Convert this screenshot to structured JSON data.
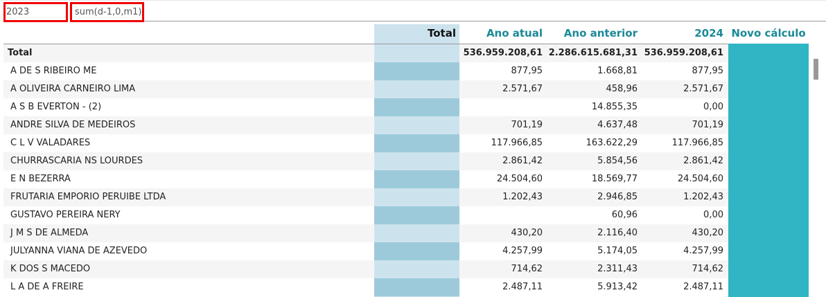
{
  "filters": {
    "year": "2023",
    "formula": "sum(d-1,0,m1)"
  },
  "headers": {
    "total": "Total",
    "ano_atual": "Ano atual",
    "ano_anterior": "Ano anterior",
    "y2024": "2024",
    "novo": "Novo cálculo"
  },
  "total_row": {
    "label": "Total",
    "ano_atual": "536.959.208,61",
    "ano_anterior": "2.286.615.681,31",
    "y2024": "536.959.208,61"
  },
  "rows": [
    {
      "name": "A DE S RIBEIRO ME",
      "a": "877,95",
      "b": "1.668,81",
      "c": "877,95"
    },
    {
      "name": "A OLIVEIRA CARNEIRO LIMA",
      "a": "2.571,67",
      "b": "458,96",
      "c": "2.571,67"
    },
    {
      "name": "A S B EVERTON - (2)",
      "a": "",
      "b": "14.855,35",
      "c": "0,00"
    },
    {
      "name": "ANDRE SILVA DE MEDEIROS",
      "a": "701,19",
      "b": "4.637,48",
      "c": "701,19"
    },
    {
      "name": "C L V VALADARES",
      "a": "117.966,85",
      "b": "163.622,29",
      "c": "117.966,85"
    },
    {
      "name": "CHURRASCARIA NS LOURDES",
      "a": "2.861,42",
      "b": "5.854,56",
      "c": "2.861,42"
    },
    {
      "name": "E N BEZERRA",
      "a": "24.504,60",
      "b": "18.569,77",
      "c": "24.504,60"
    },
    {
      "name": "FRUTARIA EMPORIO PERUIBE LTDA",
      "a": "1.202,43",
      "b": "2.946,85",
      "c": "1.202,43"
    },
    {
      "name": "GUSTAVO PEREIRA NERY",
      "a": "",
      "b": "60,96",
      "c": "0,00"
    },
    {
      "name": "J M S DE ALMEDA",
      "a": "430,20",
      "b": "2.116,40",
      "c": "430,20"
    },
    {
      "name": "JULYANNA VIANA DE AZEVEDO",
      "a": "4.257,99",
      "b": "5.174,05",
      "c": "4.257,99"
    },
    {
      "name": "K DOS S MACEDO",
      "a": "714,62",
      "b": "2.311,43",
      "c": "714,62"
    },
    {
      "name": "L A DE A FREIRE",
      "a": "2.487,11",
      "b": "5.913,42",
      "c": "2.487,11"
    }
  ]
}
